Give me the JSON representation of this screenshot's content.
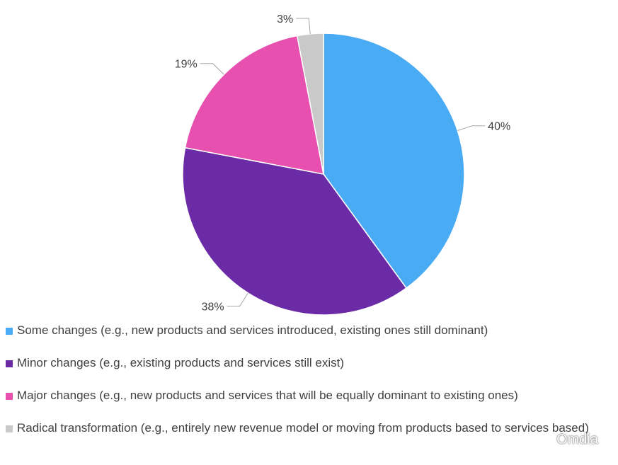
{
  "chart_data": {
    "type": "pie",
    "title": "",
    "categories": [
      "Some changes (e.g., new products and services introduced, existing ones still dominant)",
      "Minor changes (e.g., existing products and services still exist)",
      "Major changes (e.g., new products and services that will be equally dominant to existing ones)",
      "Radical transformation (e.g., entirely new revenue model or moving from products based to services based)"
    ],
    "values": [
      40,
      38,
      19,
      3
    ],
    "labels": [
      "40%",
      "38%",
      "19%",
      "3%"
    ],
    "colors": [
      "#4aabf5",
      "#6c2ba6",
      "#e750ae",
      "#c9c9c9"
    ],
    "legend_position": "bottom"
  },
  "watermark": {
    "text": "Omdia",
    "icon": "wechat-icon"
  }
}
